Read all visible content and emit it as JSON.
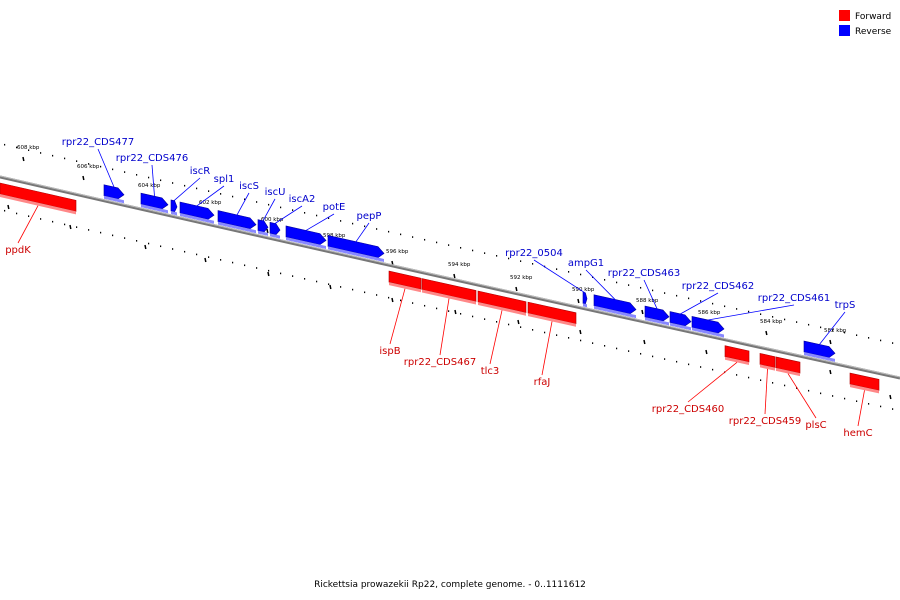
{
  "caption": "Rickettsia prowazekii Rp22, complete genome. - 0..1111612",
  "legend": [
    {
      "label": "Forward",
      "color": "#ff0000"
    },
    {
      "label": "Reverse",
      "color": "#0000ff"
    }
  ],
  "colors": {
    "forward": "#ff0000",
    "reverse": "#0000ff",
    "backbone": "#777777"
  },
  "kbp_ticks": [
    "608 kbp",
    "606 kbp",
    "604 kbp",
    "602 kbp",
    "600 kbp",
    "598 kbp",
    "596 kbp",
    "594 kbp",
    "592 kbp",
    "590 kbp",
    "588 kbp",
    "586 kbp",
    "584 kbp",
    "582 kbp"
  ],
  "genes": [
    {
      "name": "rpr22_CDS477",
      "strand": "reverse"
    },
    {
      "name": "rpr22_CDS476",
      "strand": "reverse"
    },
    {
      "name": "iscR",
      "strand": "reverse"
    },
    {
      "name": "spl1",
      "strand": "reverse"
    },
    {
      "name": "iscS",
      "strand": "reverse"
    },
    {
      "name": "iscU",
      "strand": "reverse"
    },
    {
      "name": "iscA2",
      "strand": "reverse"
    },
    {
      "name": "potE",
      "strand": "reverse"
    },
    {
      "name": "pepP",
      "strand": "reverse"
    },
    {
      "name": "rpr22_0504",
      "strand": "reverse"
    },
    {
      "name": "ampG1",
      "strand": "reverse"
    },
    {
      "name": "rpr22_CDS463",
      "strand": "reverse"
    },
    {
      "name": "rpr22_CDS462",
      "strand": "reverse"
    },
    {
      "name": "rpr22_CDS461",
      "strand": "reverse"
    },
    {
      "name": "trpS",
      "strand": "reverse"
    },
    {
      "name": "ppdK",
      "strand": "forward"
    },
    {
      "name": "ispB",
      "strand": "forward"
    },
    {
      "name": "rpr22_CDS467",
      "strand": "forward"
    },
    {
      "name": "tlc3",
      "strand": "forward"
    },
    {
      "name": "rfaJ",
      "strand": "forward"
    },
    {
      "name": "rpr22_CDS460",
      "strand": "forward"
    },
    {
      "name": "rpr22_CDS459",
      "strand": "forward"
    },
    {
      "name": "plsC",
      "strand": "forward"
    },
    {
      "name": "hemC",
      "strand": "forward"
    }
  ]
}
